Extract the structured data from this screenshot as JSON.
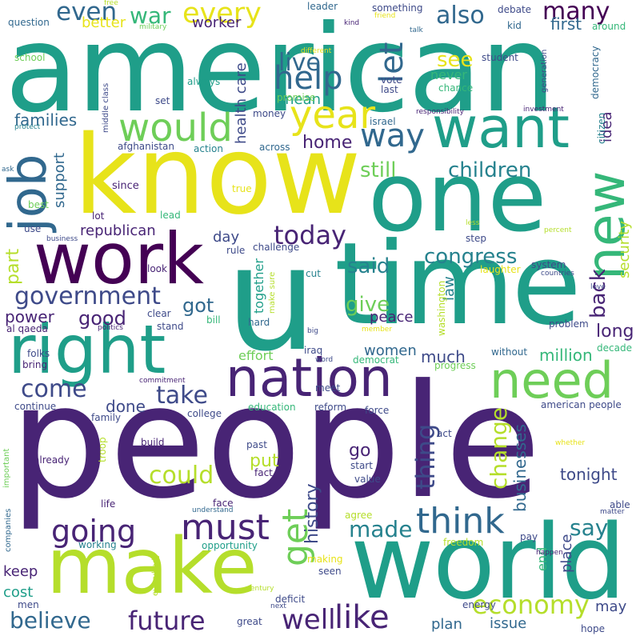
{
  "palette": {
    "p1": "#482475",
    "p2": "#3e4a89",
    "p3": "#31688e",
    "p4": "#26828e",
    "p5": "#1f9e89",
    "p6": "#35b779",
    "p7": "#6ece58",
    "p8": "#b5de2b",
    "p9": "#e7e31a",
    "p0": "#440154"
  },
  "words": [
    {
      "text": "people",
      "color": "#482475"
    },
    {
      "text": "american",
      "color": "#1f9e89"
    },
    {
      "text": "time",
      "color": "#1f9e89"
    },
    {
      "text": "u",
      "color": "#1f9e89"
    },
    {
      "text": "know",
      "color": "#e7e31a"
    },
    {
      "text": "one",
      "color": "#1f9e89"
    },
    {
      "text": "world",
      "color": "#1f9e89"
    },
    {
      "text": "make",
      "color": "#b5de2b"
    },
    {
      "text": "work",
      "color": "#440154"
    },
    {
      "text": "right",
      "color": "#1f9e89"
    },
    {
      "text": "want",
      "color": "#1f9e89"
    },
    {
      "text": "nation",
      "color": "#482475"
    },
    {
      "text": "need",
      "color": "#6ece58"
    },
    {
      "text": "job",
      "color": "#31688e"
    },
    {
      "text": "new",
      "color": "#35b779"
    },
    {
      "text": "would",
      "color": "#6ece58"
    },
    {
      "text": "year",
      "color": "#e7e31a"
    },
    {
      "text": "going",
      "color": "#482475"
    },
    {
      "text": "must",
      "color": "#482475"
    },
    {
      "text": "think",
      "color": "#31688e"
    },
    {
      "text": "like",
      "color": "#482475"
    },
    {
      "text": "well",
      "color": "#482475"
    },
    {
      "text": "future",
      "color": "#482475"
    },
    {
      "text": "believe",
      "color": "#31688e"
    },
    {
      "text": "get",
      "color": "#6ece58"
    },
    {
      "text": "economy",
      "color": "#b5de2b"
    },
    {
      "text": "way",
      "color": "#31688e"
    },
    {
      "text": "many",
      "color": "#440154"
    },
    {
      "text": "help",
      "color": "#31688e"
    },
    {
      "text": "let",
      "color": "#31688e"
    },
    {
      "text": "also",
      "color": "#31688e"
    },
    {
      "text": "live",
      "color": "#31688e"
    },
    {
      "text": "war",
      "color": "#35b779"
    },
    {
      "text": "every",
      "color": "#e7e31a"
    },
    {
      "text": "even",
      "color": "#31688e"
    },
    {
      "text": "today",
      "color": "#482475"
    },
    {
      "text": "government",
      "color": "#3e4a89"
    },
    {
      "text": "congress",
      "color": "#26828e"
    },
    {
      "text": "take",
      "color": "#3e4a89"
    },
    {
      "text": "come",
      "color": "#3e4a89"
    },
    {
      "text": "could",
      "color": "#b5de2b"
    },
    {
      "text": "made",
      "color": "#26828e"
    },
    {
      "text": "say",
      "color": "#26828e"
    },
    {
      "text": "back",
      "color": "#482475"
    },
    {
      "text": "said",
      "color": "#26828e"
    },
    {
      "text": "children",
      "color": "#26828e"
    },
    {
      "text": "still",
      "color": "#6ece58"
    },
    {
      "text": "see",
      "color": "#e7e31a"
    },
    {
      "text": "home",
      "color": "#482475"
    },
    {
      "text": "thing",
      "color": "#3e4a89"
    },
    {
      "text": "change",
      "color": "#b5de2b"
    },
    {
      "text": "give",
      "color": "#6ece58"
    },
    {
      "text": "good",
      "color": "#482475"
    },
    {
      "text": "got",
      "color": "#31688e"
    },
    {
      "text": "part",
      "color": "#b5de2b"
    },
    {
      "text": "power",
      "color": "#482475"
    },
    {
      "text": "families",
      "color": "#31688e"
    },
    {
      "text": "done",
      "color": "#3e4a89"
    },
    {
      "text": "history",
      "color": "#3e4a89"
    },
    {
      "text": "businesses",
      "color": "#31688e"
    },
    {
      "text": "tonight",
      "color": "#3e4a89"
    },
    {
      "text": "go",
      "color": "#482475"
    },
    {
      "text": "put",
      "color": "#b5de2b"
    },
    {
      "text": "million",
      "color": "#35b779"
    },
    {
      "text": "long",
      "color": "#482475"
    },
    {
      "text": "women",
      "color": "#31688e"
    },
    {
      "text": "much",
      "color": "#3e4a89"
    },
    {
      "text": "first",
      "color": "#31688e"
    },
    {
      "text": "better",
      "color": "#e7e31a"
    },
    {
      "text": "worker",
      "color": "#482475"
    },
    {
      "text": "support",
      "color": "#31688e"
    },
    {
      "text": "republican",
      "color": "#482475"
    },
    {
      "text": "day",
      "color": "#3e4a89"
    },
    {
      "text": "security",
      "color": "#b5de2b"
    },
    {
      "text": "health care",
      "color": "#3e4a89"
    },
    {
      "text": "mean",
      "color": "#1f9e89"
    },
    {
      "text": "never",
      "color": "#35b779"
    },
    {
      "text": "together",
      "color": "#1f9e89"
    },
    {
      "text": "peace",
      "color": "#482475"
    },
    {
      "text": "idea",
      "color": "#482475"
    },
    {
      "text": "plan",
      "color": "#31688e"
    },
    {
      "text": "issue",
      "color": "#31688e"
    },
    {
      "text": "may",
      "color": "#3e4a89"
    },
    {
      "text": "keep",
      "color": "#482475"
    },
    {
      "text": "cost",
      "color": "#1f9e89"
    },
    {
      "text": "end",
      "color": "#35b779"
    },
    {
      "text": "place",
      "color": "#3e4a89"
    },
    {
      "text": "law",
      "color": "#26828e"
    },
    {
      "text": "effort",
      "color": "#6ece58"
    },
    {
      "text": "school",
      "color": "#6ece58"
    },
    {
      "text": "question",
      "color": "#31688e"
    },
    {
      "text": "afghanistan",
      "color": "#3e4a89"
    },
    {
      "text": "action",
      "color": "#26828e"
    },
    {
      "text": "since",
      "color": "#482475"
    },
    {
      "text": "student",
      "color": "#3e4a89"
    },
    {
      "text": "kid",
      "color": "#31688e"
    },
    {
      "text": "around",
      "color": "#35b779"
    },
    {
      "text": "debate",
      "color": "#3e4a89"
    },
    {
      "text": "something",
      "color": "#3e4a89"
    },
    {
      "text": "leader",
      "color": "#31688e"
    },
    {
      "text": "free",
      "color": "#b5de2b"
    },
    {
      "text": "military",
      "color": "#6ece58"
    },
    {
      "text": "kind",
      "color": "#482475"
    },
    {
      "text": "friend",
      "color": "#e7e31a"
    },
    {
      "text": "talk",
      "color": "#31688e"
    },
    {
      "text": "different",
      "color": "#e7e31a"
    },
    {
      "text": "vote",
      "color": "#3e4a89"
    },
    {
      "text": "chance",
      "color": "#35b779"
    },
    {
      "text": "last",
      "color": "#3e4a89"
    },
    {
      "text": "generation",
      "color": "#3e4a89"
    },
    {
      "text": "democracy",
      "color": "#31688e"
    },
    {
      "text": "responsibility",
      "color": "#482475"
    },
    {
      "text": "investment",
      "color": "#482475"
    },
    {
      "text": "citizen",
      "color": "#26828e"
    },
    {
      "text": "always",
      "color": "#1f9e89"
    },
    {
      "text": "set",
      "color": "#3e4a89"
    },
    {
      "text": "promise",
      "color": "#6ece58"
    },
    {
      "text": "middle class",
      "color": "#3e4a89"
    },
    {
      "text": "israel",
      "color": "#31688e"
    },
    {
      "text": "money",
      "color": "#3e4a89"
    },
    {
      "text": "across",
      "color": "#31688e"
    },
    {
      "text": "protect",
      "color": "#26828e"
    },
    {
      "text": "true",
      "color": "#e7e31a"
    },
    {
      "text": "best",
      "color": "#6ece58"
    },
    {
      "text": "ask",
      "color": "#31688e"
    },
    {
      "text": "lead",
      "color": "#35b779"
    },
    {
      "text": "use",
      "color": "#3e4a89"
    },
    {
      "text": "lot",
      "color": "#482475"
    },
    {
      "text": "business",
      "color": "#3e4a89"
    },
    {
      "text": "step",
      "color": "#3e4a89"
    },
    {
      "text": "less",
      "color": "#b5de2b"
    },
    {
      "text": "percent",
      "color": "#b5de2b"
    },
    {
      "text": "challenge",
      "color": "#3e4a89"
    },
    {
      "text": "rule",
      "color": "#3e4a89"
    },
    {
      "text": "system",
      "color": "#3e4a89"
    },
    {
      "text": "laughter",
      "color": "#e7e31a"
    },
    {
      "text": "countries",
      "color": "#3e4a89"
    },
    {
      "text": "look",
      "color": "#482475"
    },
    {
      "text": "cut",
      "color": "#26828e"
    },
    {
      "text": "make sure",
      "color": "#b5de2b"
    },
    {
      "text": "love",
      "color": "#3e4a89"
    },
    {
      "text": "al qaeda",
      "color": "#482475"
    },
    {
      "text": "politics",
      "color": "#482475"
    },
    {
      "text": "clear",
      "color": "#3e4a89"
    },
    {
      "text": "stand",
      "color": "#3e4a89"
    },
    {
      "text": "bill",
      "color": "#35b779"
    },
    {
      "text": "hard",
      "color": "#31688e"
    },
    {
      "text": "washington",
      "color": "#b5de2b"
    },
    {
      "text": "big",
      "color": "#3e4a89"
    },
    {
      "text": "member",
      "color": "#e7e31a"
    },
    {
      "text": "problem",
      "color": "#3e4a89"
    },
    {
      "text": "decade",
      "color": "#35b779"
    },
    {
      "text": "folks",
      "color": "#3e4a89"
    },
    {
      "text": "bring",
      "color": "#482475"
    },
    {
      "text": "iraq",
      "color": "#3e4a89"
    },
    {
      "text": "word",
      "color": "#3e4a89"
    },
    {
      "text": "democrat",
      "color": "#35b779"
    },
    {
      "text": "without",
      "color": "#31688e"
    },
    {
      "text": "progress",
      "color": "#6ece58"
    },
    {
      "text": "commitment",
      "color": "#482475"
    },
    {
      "text": "meet",
      "color": "#3e4a89"
    },
    {
      "text": "continue",
      "color": "#3e4a89"
    },
    {
      "text": "education",
      "color": "#35b779"
    },
    {
      "text": "reform",
      "color": "#3e4a89"
    },
    {
      "text": "force",
      "color": "#3e4a89"
    },
    {
      "text": "american people",
      "color": "#3e4a89"
    },
    {
      "text": "family",
      "color": "#3e4a89"
    },
    {
      "text": "college",
      "color": "#3e4a89"
    },
    {
      "text": "act",
      "color": "#3e4a89"
    },
    {
      "text": "troop",
      "color": "#b5de2b"
    },
    {
      "text": "build",
      "color": "#482475"
    },
    {
      "text": "past",
      "color": "#3e4a89"
    },
    {
      "text": "whether",
      "color": "#e7e31a"
    },
    {
      "text": "important",
      "color": "#6ece58"
    },
    {
      "text": "already",
      "color": "#482475"
    },
    {
      "text": "fact",
      "color": "#482475"
    },
    {
      "text": "start",
      "color": "#3e4a89"
    },
    {
      "text": "value",
      "color": "#3e4a89"
    },
    {
      "text": "companies",
      "color": "#31688e"
    },
    {
      "text": "life",
      "color": "#482475"
    },
    {
      "text": "face",
      "color": "#482475"
    },
    {
      "text": "understand",
      "color": "#31688e"
    },
    {
      "text": "agree",
      "color": "#b5de2b"
    },
    {
      "text": "able",
      "color": "#3e4a89"
    },
    {
      "text": "matter",
      "color": "#3e4a89"
    },
    {
      "text": "pay",
      "color": "#3e4a89"
    },
    {
      "text": "working",
      "color": "#26828e"
    },
    {
      "text": "opportunity",
      "color": "#1f9e89"
    },
    {
      "text": "freedom",
      "color": "#b5de2b"
    },
    {
      "text": "everybody",
      "color": "#b5de2b"
    },
    {
      "text": "happen",
      "color": "#482475"
    },
    {
      "text": "making",
      "color": "#e7e31a"
    },
    {
      "text": "seen",
      "color": "#3e4a89"
    },
    {
      "text": "century",
      "color": "#b5de2b"
    },
    {
      "text": "men",
      "color": "#3e4a89"
    },
    {
      "text": "great",
      "color": "#3e4a89"
    },
    {
      "text": "next",
      "color": "#3e4a89"
    },
    {
      "text": "deficit",
      "color": "#3e4a89"
    },
    {
      "text": "energy",
      "color": "#3e4a89"
    },
    {
      "text": "hope",
      "color": "#3e4a89"
    }
  ]
}
